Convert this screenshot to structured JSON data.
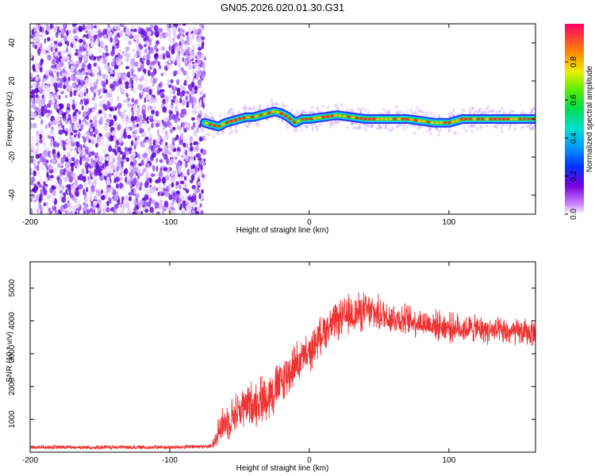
{
  "title": "GN05.2026.020.01.30.G31",
  "chart_data": [
    {
      "type": "heatmap",
      "title": "GN05.2026.020.01.30.G31",
      "xlabel": "Height of straight line (km)",
      "ylabel": "Frequency (Hz)",
      "xlim": [
        -200,
        162
      ],
      "ylim": [
        -50,
        50
      ],
      "xticks": [
        -200,
        -100,
        0,
        100
      ],
      "yticks": [
        -40,
        -20,
        0,
        20,
        40
      ],
      "colorbar": {
        "label": "Normalized spectral amplitude",
        "range": [
          0.0,
          1.0
        ],
        "ticks": [
          0.0,
          0.2,
          0.4,
          0.6,
          0.8
        ]
      },
      "noise_region_km": [
        -200,
        -75
      ],
      "ridge": {
        "x": [
          -75,
          -70,
          -65,
          -60,
          -55,
          -50,
          -45,
          -40,
          -35,
          -30,
          -25,
          -20,
          -15,
          -10,
          -5,
          0,
          10,
          20,
          30,
          40,
          50,
          60,
          70,
          80,
          90,
          100,
          110,
          120,
          130,
          140,
          150,
          162
        ],
        "y": [
          -2,
          -3,
          -4,
          -2,
          -1,
          0,
          1,
          1,
          2,
          3,
          4,
          3,
          1,
          -2,
          0,
          0,
          1,
          2,
          1,
          0,
          0,
          0,
          0,
          -1,
          -2,
          -2,
          0,
          0,
          0,
          0,
          0,
          0
        ]
      }
    },
    {
      "type": "line",
      "xlabel": "Height of straight line (km)",
      "ylabel": "SNR (10 * v/v)",
      "xlim": [
        -200,
        162
      ],
      "ylim": [
        0,
        5800
      ],
      "xticks": [
        -200,
        -100,
        0,
        100
      ],
      "yticks": [
        1000,
        2000,
        3000,
        4000,
        5000
      ],
      "series": [
        {
          "name": "SNR",
          "color": "#ee3333",
          "envelope_x": [
            -200,
            -150,
            -100,
            -70,
            -65,
            -50,
            -40,
            -30,
            -20,
            -10,
            0,
            10,
            20,
            30,
            40,
            60,
            80,
            100,
            120,
            140,
            162
          ],
          "envelope_y": [
            150,
            150,
            150,
            180,
            700,
            1300,
            1500,
            1700,
            2100,
            2700,
            3000,
            3700,
            4000,
            4200,
            4300,
            4100,
            3950,
            3800,
            3750,
            3650,
            3650
          ],
          "noise_amplitude": [
            100,
            100,
            100,
            100,
            800,
            1000,
            1100,
            1200,
            1200,
            1000,
            900,
            900,
            900,
            1000,
            900,
            800,
            700,
            700,
            650,
            650,
            650
          ]
        }
      ]
    }
  ]
}
